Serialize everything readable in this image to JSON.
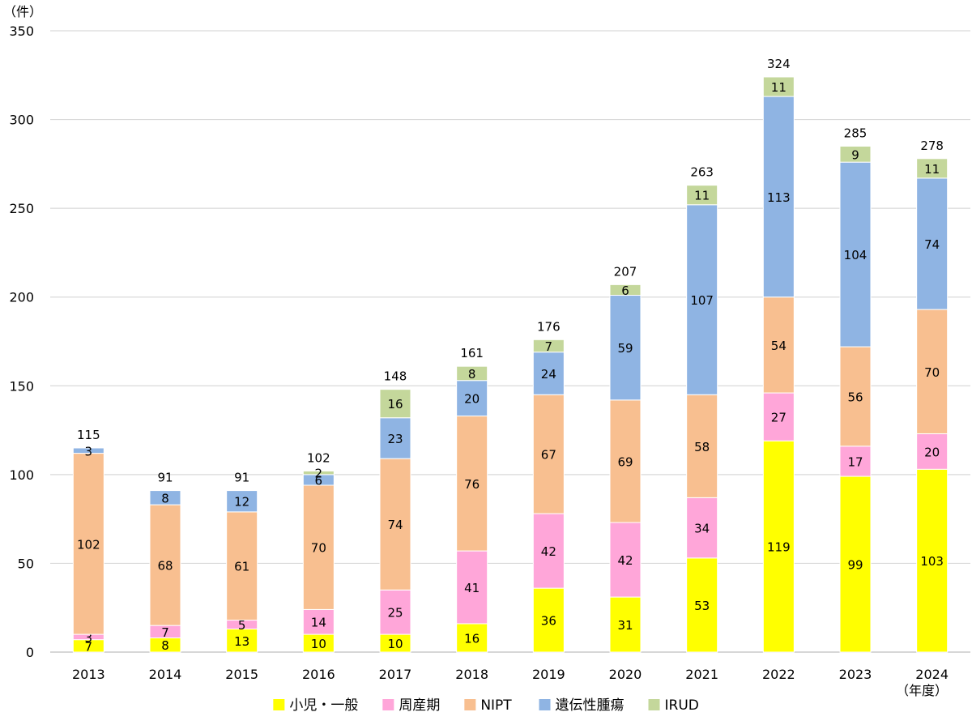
{
  "chart_data": {
    "type": "bar",
    "stacked": true,
    "y_unit_label": "（件）",
    "x_unit_label": "（年度）",
    "ylim": [
      0,
      350
    ],
    "y_ticks": [
      0,
      50,
      100,
      150,
      200,
      250,
      300,
      350
    ],
    "grid": "horizontal",
    "legend_position": "bottom",
    "categories": [
      "2013",
      "2014",
      "2015",
      "2016",
      "2017",
      "2018",
      "2019",
      "2020",
      "2021",
      "2022",
      "2023",
      "2024"
    ],
    "series": [
      {
        "name": "小児・一般",
        "color": "#FFFF00",
        "values": [
          7,
          8,
          13,
          10,
          10,
          16,
          36,
          31,
          53,
          119,
          99,
          103
        ]
      },
      {
        "name": "周産期",
        "color": "#FFA6D9",
        "values": [
          3,
          7,
          5,
          14,
          25,
          41,
          42,
          42,
          34,
          27,
          17,
          20
        ]
      },
      {
        "name": "NIPT",
        "color": "#F8BF90",
        "values": [
          102,
          68,
          61,
          70,
          74,
          76,
          67,
          69,
          58,
          54,
          56,
          70
        ]
      },
      {
        "name": "遺伝性腫瘍",
        "color": "#8FB4E3",
        "values": [
          3,
          8,
          12,
          6,
          23,
          20,
          24,
          59,
          107,
          113,
          104,
          74
        ]
      },
      {
        "name": "IRUD",
        "color": "#C4D79B",
        "values": [
          0,
          0,
          0,
          2,
          16,
          8,
          7,
          6,
          11,
          11,
          9,
          11
        ]
      }
    ],
    "totals": [
      115,
      91,
      91,
      102,
      148,
      161,
      176,
      207,
      263,
      324,
      285,
      278
    ]
  }
}
